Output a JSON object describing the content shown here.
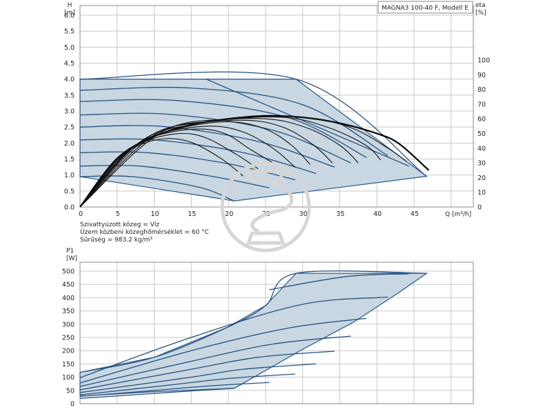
{
  "chart_data": [
    {
      "type": "line",
      "title": "MAGNA3 100-40 F, Modell E",
      "ylabel": "H",
      "yunit": "[m]",
      "y2label": "eta",
      "y2unit": "[%]",
      "xlabel": "Q [m³/h]",
      "xlim": [
        0,
        53
      ],
      "ylim": [
        0,
        6.0
      ],
      "y2lim": [
        0,
        100
      ],
      "xticks": [
        "0",
        "5",
        "10",
        "15",
        "20",
        "25",
        "30",
        "35",
        "40",
        "45"
      ],
      "yticks": [
        "0.0",
        "0.5",
        "1.0",
        "1.5",
        "2.0",
        "2.5",
        "3.0",
        "3.5",
        "4.0",
        "4.5",
        "5.0",
        "5.5",
        "6.0"
      ],
      "y2ticks": [
        "0",
        "10",
        "20",
        "30",
        "40",
        "50",
        "60",
        "70",
        "80",
        "90",
        "100"
      ],
      "grid": true,
      "notes": [
        "Szivattyúzott közeg = Víz",
        "Üzem közbeni közeghőmérséklet = 60 °C",
        "Sűrűség = 983.2 kg/m³"
      ],
      "operating_range": [
        [
          0,
          4.0
        ],
        [
          29.1,
          4.0
        ],
        [
          46.7,
          0.96
        ],
        [
          20.8,
          0.19
        ],
        [
          0,
          0.95
        ]
      ],
      "pump_curves": [
        {
          "name": "max",
          "points": [
            [
              0,
              4.0
            ],
            [
              29.1,
              4.0
            ],
            [
              46.7,
              0.96
            ]
          ]
        },
        {
          "points": [
            [
              17,
              4.0
            ],
            [
              44.3,
              1.28
            ]
          ]
        },
        {
          "points": [
            [
              0,
              3.65
            ],
            [
              15,
              3.72
            ],
            [
              30,
              3.2
            ],
            [
              41.5,
              1.6
            ]
          ]
        },
        {
          "points": [
            [
              0,
              3.3
            ],
            [
              13,
              3.33
            ],
            [
              28,
              2.8
            ],
            [
              38.6,
              1.55
            ]
          ]
        },
        {
          "points": [
            [
              0,
              2.88
            ],
            [
              12,
              2.9
            ],
            [
              26,
              2.4
            ],
            [
              36.5,
              1.38
            ]
          ]
        },
        {
          "points": [
            [
              0,
              2.5
            ],
            [
              11,
              2.52
            ],
            [
              24,
              2.05
            ],
            [
              34.3,
              1.25
            ]
          ]
        },
        {
          "points": [
            [
              0,
              2.1
            ],
            [
              10,
              2.1
            ],
            [
              22,
              1.7
            ],
            [
              31.8,
              1.05
            ]
          ]
        },
        {
          "points": [
            [
              0,
              1.7
            ],
            [
              9,
              1.7
            ],
            [
              20,
              1.35
            ],
            [
              29.0,
              0.85
            ]
          ]
        },
        {
          "points": [
            [
              0,
              1.28
            ],
            [
              8,
              1.28
            ],
            [
              18,
              0.95
            ],
            [
              25.5,
              0.6
            ]
          ]
        },
        {
          "points": [
            [
              0,
              0.95
            ],
            [
              7,
              0.95
            ],
            [
              16,
              0.62
            ],
            [
              20.8,
              0.19
            ]
          ]
        }
      ],
      "efficiency_curves": [
        {
          "name": "eta max",
          "points": [
            [
              0,
              0
            ],
            [
              5,
              33
            ],
            [
              10,
              48
            ],
            [
              15,
              56
            ],
            [
              20,
              60
            ],
            [
              25,
              62
            ],
            [
              30,
              61
            ],
            [
              35,
              57
            ],
            [
              40,
              50
            ],
            [
              43,
              43
            ],
            [
              47,
              25
            ]
          ]
        },
        {
          "points": [
            [
              0,
              0
            ],
            [
              5,
              32
            ],
            [
              8,
              42
            ],
            [
              11.5,
              46.5
            ],
            [
              15,
              44
            ],
            [
              19,
              33
            ],
            [
              22,
              21
            ]
          ]
        },
        {
          "points": [
            [
              0,
              0
            ],
            [
              5,
              32
            ],
            [
              9,
              45
            ],
            [
              13.5,
              50
            ],
            [
              17,
              47
            ],
            [
              21,
              36
            ],
            [
              24,
              26
            ]
          ]
        },
        {
          "points": [
            [
              0,
              0
            ],
            [
              6,
              36
            ],
            [
              10,
              48
            ],
            [
              15.5,
              53
            ],
            [
              19.5,
              50
            ],
            [
              23,
              39
            ],
            [
              26,
              30
            ]
          ]
        },
        {
          "points": [
            [
              0,
              0
            ],
            [
              6,
              36
            ],
            [
              11,
              50
            ],
            [
              17.5,
              55
            ],
            [
              22,
              51
            ],
            [
              26,
              40
            ],
            [
              29,
              27
            ]
          ]
        },
        {
          "points": [
            [
              0,
              0
            ],
            [
              7,
              40
            ],
            [
              13,
              53
            ],
            [
              20,
              58
            ],
            [
              25,
              53
            ],
            [
              28.5,
              42
            ],
            [
              31,
              29
            ]
          ]
        },
        {
          "points": [
            [
              0,
              0
            ],
            [
              8,
              44
            ],
            [
              15,
              56
            ],
            [
              22.5,
              59
            ],
            [
              27.5,
              54
            ],
            [
              31.5,
              42
            ],
            [
              34,
              30
            ]
          ]
        },
        {
          "points": [
            [
              0,
              0
            ],
            [
              9,
              47
            ],
            [
              17,
              58
            ],
            [
              25,
              60
            ],
            [
              30.5,
              54
            ],
            [
              35,
              42
            ],
            [
              37.5,
              30
            ]
          ]
        },
        {
          "points": [
            [
              0,
              0
            ],
            [
              10,
              49
            ],
            [
              19,
              59
            ],
            [
              27.5,
              61
            ],
            [
              33.5,
              54
            ],
            [
              38.5,
              42
            ],
            [
              40.5,
              32
            ]
          ]
        },
        {
          "points": [
            [
              0,
              0
            ],
            [
              11,
              51
            ],
            [
              21,
              60
            ],
            [
              30,
              61
            ],
            [
              36.5,
              54
            ],
            [
              41.5,
              40
            ],
            [
              44,
              31
            ]
          ]
        }
      ]
    },
    {
      "type": "line",
      "ylabel": "P1",
      "yunit": "[W]",
      "xlim": [
        0,
        53
      ],
      "ylim": [
        0,
        520
      ],
      "yticks": [
        "0",
        "50",
        "100",
        "150",
        "200",
        "250",
        "300",
        "350",
        "400",
        "450",
        "500"
      ],
      "grid": true,
      "operating_range": [
        [
          0,
          118
        ],
        [
          10,
          175
        ],
        [
          20,
          290
        ],
        [
          25,
          370
        ],
        [
          29.1,
          492
        ],
        [
          46.7,
          492
        ],
        [
          43,
          420
        ],
        [
          37,
          310
        ],
        [
          30,
          205
        ],
        [
          20.8,
          58
        ],
        [
          10,
          45
        ],
        [
          0,
          28
        ]
      ],
      "power_curves": [
        {
          "name": "max",
          "points": [
            [
              0,
              118
            ],
            [
              10,
              175
            ],
            [
              20,
              290
            ],
            [
              25,
              370
            ],
            [
              29.1,
              492
            ],
            [
              46.7,
              492
            ]
          ]
        },
        {
          "points": [
            [
              25.5,
              430
            ],
            [
              36,
              480
            ],
            [
              44.3,
              490
            ]
          ]
        },
        {
          "points": [
            [
              0,
              98
            ],
            [
              15,
              250
            ],
            [
              30,
              375
            ],
            [
              41.5,
              402
            ]
          ]
        },
        {
          "points": [
            [
              0,
              78
            ],
            [
              15,
              200
            ],
            [
              28,
              285
            ],
            [
              38.6,
              322
            ]
          ]
        },
        {
          "points": [
            [
              0,
              65
            ],
            [
              15,
              160
            ],
            [
              26,
              225
            ],
            [
              36.5,
              255
            ]
          ]
        },
        {
          "points": [
            [
              0,
              52
            ],
            [
              15,
              130
            ],
            [
              24,
              175
            ],
            [
              34.3,
              198
            ]
          ]
        },
        {
          "points": [
            [
              0,
              42
            ],
            [
              15,
              100
            ],
            [
              22,
              130
            ],
            [
              31.8,
              150
            ]
          ]
        },
        {
          "points": [
            [
              0,
              33
            ],
            [
              12,
              70
            ],
            [
              20,
              95
            ],
            [
              29.0,
              112
            ]
          ]
        },
        {
          "points": [
            [
              0,
              27
            ],
            [
              10,
              50
            ],
            [
              18,
              68
            ],
            [
              25.5,
              80
            ]
          ]
        },
        {
          "points": [
            [
              0,
              20
            ],
            [
              8,
              35
            ],
            [
              15,
              48
            ],
            [
              20.8,
              58
            ]
          ]
        }
      ]
    }
  ]
}
